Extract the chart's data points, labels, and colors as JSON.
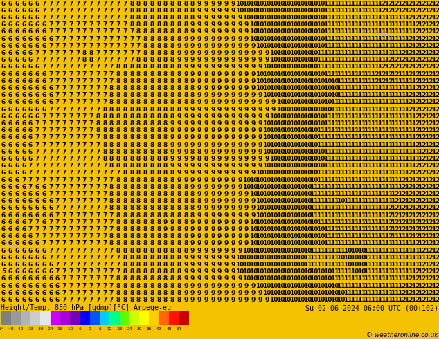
{
  "title_left": "Height/Temp. 850 hPa [gdmp][°C] Arpege-eu",
  "title_right": "Su 02-06-2024 06:00 UTC (00+102)",
  "copyright": "© weatheronline.co.uk",
  "colorbar_values": [
    -54,
    -48,
    -42,
    -38,
    -30,
    -24,
    -18,
    -12,
    -6,
    0,
    6,
    12,
    18,
    24,
    30,
    36,
    42,
    48,
    54
  ],
  "colorbar_colors": [
    "#808080",
    "#999999",
    "#b3b3b3",
    "#cccccc",
    "#e6e6e6",
    "#cc00ff",
    "#aa00dd",
    "#7700bb",
    "#0000ff",
    "#0055ff",
    "#00ccff",
    "#00ff88",
    "#55ff00",
    "#ccff00",
    "#ffff00",
    "#ffcc00",
    "#ff6600",
    "#ff1100",
    "#cc0000"
  ],
  "bg_color": "#f5c200",
  "map_bg": "#f5c200",
  "fig_width": 6.34,
  "fig_height": 4.9,
  "dpi": 100,
  "bottom_bar_height": 0.105,
  "bottom_bar_color": "#ffffff"
}
